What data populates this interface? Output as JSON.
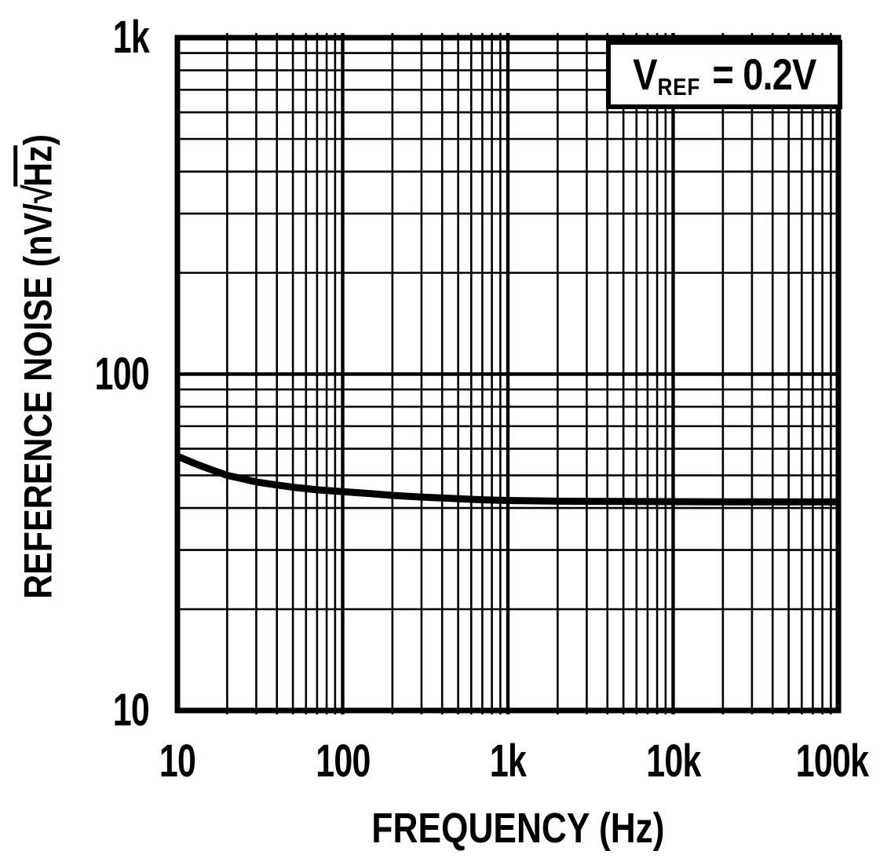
{
  "figure": {
    "background": "#ffffff",
    "ink": "#000000"
  },
  "annotation": {
    "variable": "V",
    "subscript": "REF",
    "value": "= 0.2V"
  },
  "axes": {
    "x_label": "FREQUENCY (Hz)",
    "y_label_prefix": "REFERENCE NOISE (nV/",
    "y_label_radical": "√",
    "y_label_radicand": "Hz",
    "y_label_suffix": ")"
  },
  "chart_data": {
    "type": "line",
    "title": "",
    "xlabel": "FREQUENCY (Hz)",
    "ylabel": "REFERENCE NOISE (nV/√Hz)",
    "x_scale": "log",
    "y_scale": "log",
    "xlim": [
      10,
      100000
    ],
    "ylim": [
      10,
      1000
    ],
    "grid": "log-log major and minor gridlines on both axes",
    "legend": "none",
    "annotation_text": "VREF = 0.2V",
    "x_ticks": [
      {
        "value": 10,
        "label": "10"
      },
      {
        "value": 100,
        "label": "100"
      },
      {
        "value": 1000,
        "label": "1k"
      },
      {
        "value": 10000,
        "label": "10k"
      },
      {
        "value": 100000,
        "label": "100k"
      }
    ],
    "y_ticks": [
      {
        "value": 10,
        "label": "10"
      },
      {
        "value": 100,
        "label": "100"
      },
      {
        "value": 1000,
        "label": "1k"
      }
    ],
    "series": [
      {
        "name": "reference-noise",
        "x": [
          10,
          13,
          16,
          20,
          25,
          30,
          40,
          50,
          70,
          100,
          150,
          200,
          300,
          500,
          700,
          1000,
          2000,
          3000,
          5000,
          10000,
          20000,
          50000,
          100000
        ],
        "y": [
          57,
          54,
          52,
          50,
          48.8,
          47.8,
          46.8,
          46.1,
          45.3,
          44.7,
          44.1,
          43.6,
          43.1,
          42.6,
          42.3,
          42.1,
          41.9,
          41.85,
          41.8,
          41.75,
          41.7,
          41.7,
          41.7
        ]
      }
    ]
  }
}
